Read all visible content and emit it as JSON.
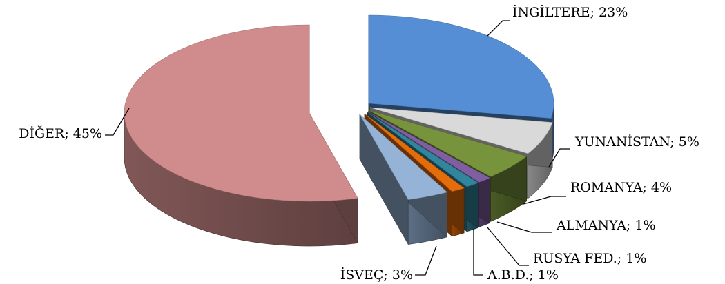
{
  "chart_data": {
    "type": "pie",
    "style": "3d-exploded",
    "legend": "none",
    "slices": [
      {
        "label": "İNGİLTERE",
        "value": 23,
        "value_label": "23%",
        "color": "#558ED5"
      },
      {
        "label": "YUNANİSTAN",
        "value": 5,
        "value_label": "5%",
        "color": "#D9D9D9"
      },
      {
        "label": "ROMANYA",
        "value": 4,
        "value_label": "4%",
        "color": "#77933C"
      },
      {
        "label": "ALMANYA",
        "value": 1,
        "value_label": "1%",
        "color": "#7F5F9F"
      },
      {
        "label": "RUSYA FED.",
        "value": 1,
        "value_label": "1%",
        "color": "#31859C"
      },
      {
        "label": "A.B.D.",
        "value": 1,
        "value_label": "1%",
        "color": "#E46C0A"
      },
      {
        "label": "İSVEÇ",
        "value": 3,
        "value_label": "3%",
        "color": "#95B3D7"
      },
      {
        "label": "DİĞER",
        "value": 45,
        "value_label": "45%",
        "color": "#D08C8C"
      }
    ]
  }
}
